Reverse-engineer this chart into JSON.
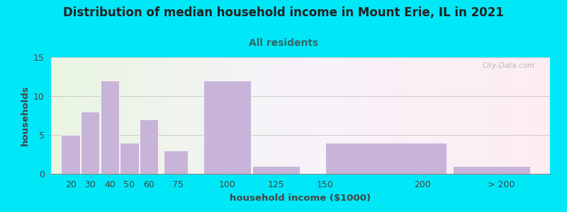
{
  "title": "Distribution of median household income in Mount Erie, IL in 2021",
  "subtitle": "All residents",
  "xlabel": "household income ($1000)",
  "ylabel": "households",
  "bar_color": "#c8b4d8",
  "bar_edgecolor": "#ffffff",
  "background_color": "#00e8f8",
  "ylim": [
    0,
    15
  ],
  "yticks": [
    0,
    5,
    10,
    15
  ],
  "bar_left_edges": [
    15,
    25,
    35,
    45,
    55,
    67.5,
    87.5,
    112.5,
    150,
    215
  ],
  "bar_widths": [
    10,
    10,
    10,
    10,
    10,
    12.5,
    25,
    25,
    62.5,
    40
  ],
  "bar_heights": [
    5,
    8,
    12,
    4,
    7,
    3,
    12,
    1,
    4,
    1
  ],
  "xtick_positions": [
    20,
    30,
    40,
    50,
    60,
    75,
    100,
    125,
    150,
    200,
    240
  ],
  "xtick_labels": [
    "20",
    "30",
    "40",
    "50",
    "60",
    "75",
    "100",
    "125",
    "150",
    "200",
    "> 200"
  ],
  "xlim": [
    10,
    265
  ],
  "watermark": "City-Data.com",
  "title_fontsize": 12,
  "subtitle_fontsize": 10,
  "label_fontsize": 9.5,
  "tick_fontsize": 9,
  "title_color": "#222222",
  "subtitle_color": "#336666",
  "label_color": "#444444"
}
